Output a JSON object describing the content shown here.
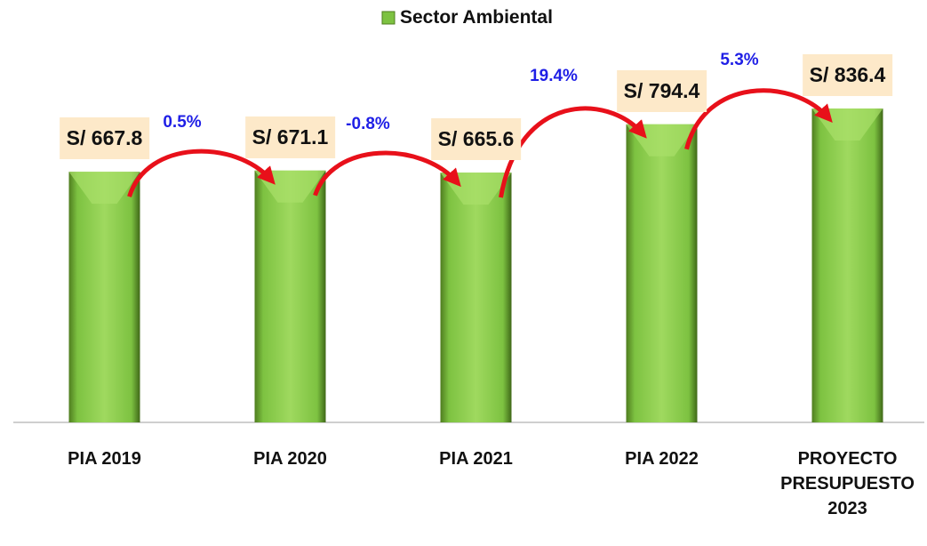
{
  "chart_data": {
    "type": "bar",
    "categories": [
      "PIA 2019",
      "PIA 2020",
      "PIA 2021",
      "PIA 2022",
      "PROYECTO PRESUPUESTO 2023"
    ],
    "series": [
      {
        "name": "Sector Ambiental",
        "color": "#7dc241",
        "values": [
          667.8,
          671.1,
          665.6,
          794.4,
          836.4
        ],
        "value_labels": [
          "S/ 667.8",
          "S/ 671.1",
          "S/ 665.6",
          "S/ 794.4",
          "S/ 836.4"
        ]
      }
    ],
    "annotations": [
      "0.5%",
      "-0.8%",
      "19.4%",
      "5.3%"
    ]
  }
}
